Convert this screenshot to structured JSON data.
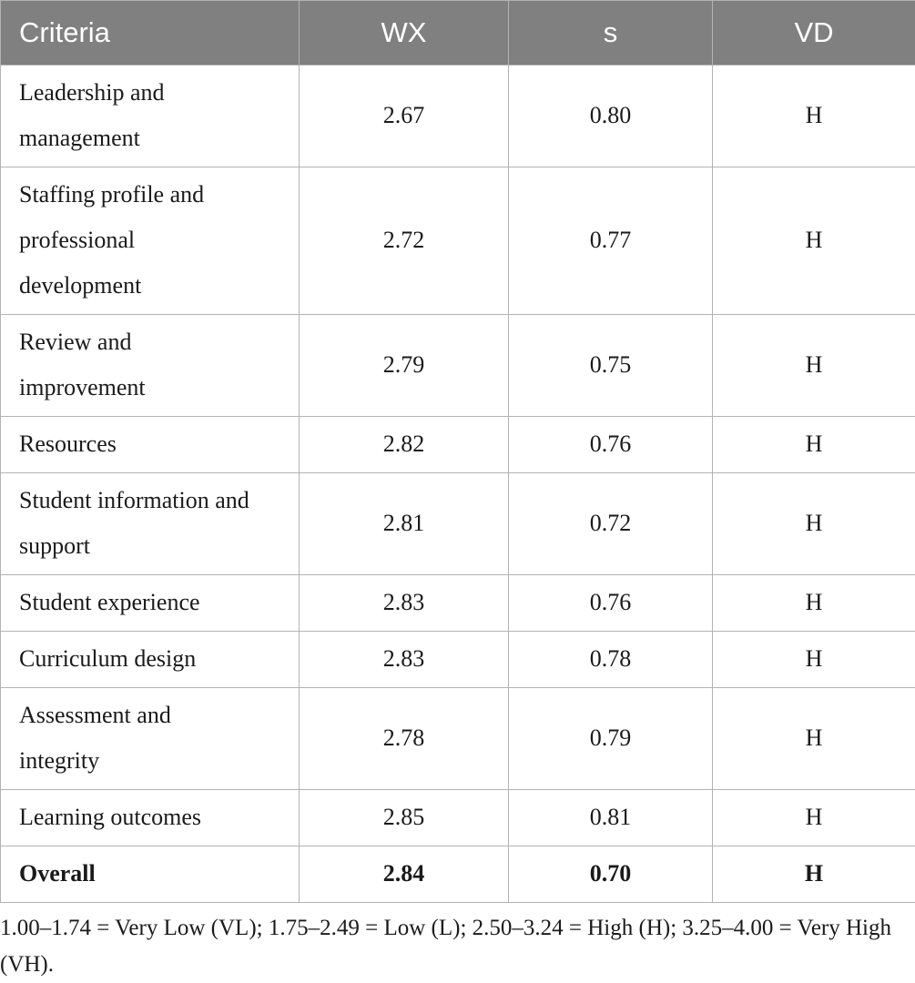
{
  "table": {
    "header": [
      "Criteria",
      "WX",
      "s",
      "VD"
    ],
    "rows": [
      [
        "Leadership and management",
        "2.67",
        "0.80",
        "H"
      ],
      [
        "Staffing profile and professional development",
        "2.72",
        "0.77",
        "H"
      ],
      [
        "Review and improvement",
        "2.79",
        "0.75",
        "H"
      ],
      [
        "Resources",
        "2.82",
        "0.76",
        "H"
      ],
      [
        "Student information and support",
        "2.81",
        "0.72",
        "H"
      ],
      [
        "Student experience",
        "2.83",
        "0.76",
        "H"
      ],
      [
        "Curriculum design",
        "2.83",
        "0.78",
        "H"
      ],
      [
        "Assessment and integrity",
        "2.78",
        "0.79",
        "H"
      ],
      [
        "Learning outcomes",
        "2.85",
        "0.81",
        "H"
      ],
      [
        "Overall",
        "2.84",
        "0.70",
        "H"
      ]
    ]
  },
  "footnote": "1.00–1.74 = Very Low (VL); 1.75–2.49 = Low (L); 2.50–3.24 = High (H); 3.25–4.00 = Very High (VH)."
}
